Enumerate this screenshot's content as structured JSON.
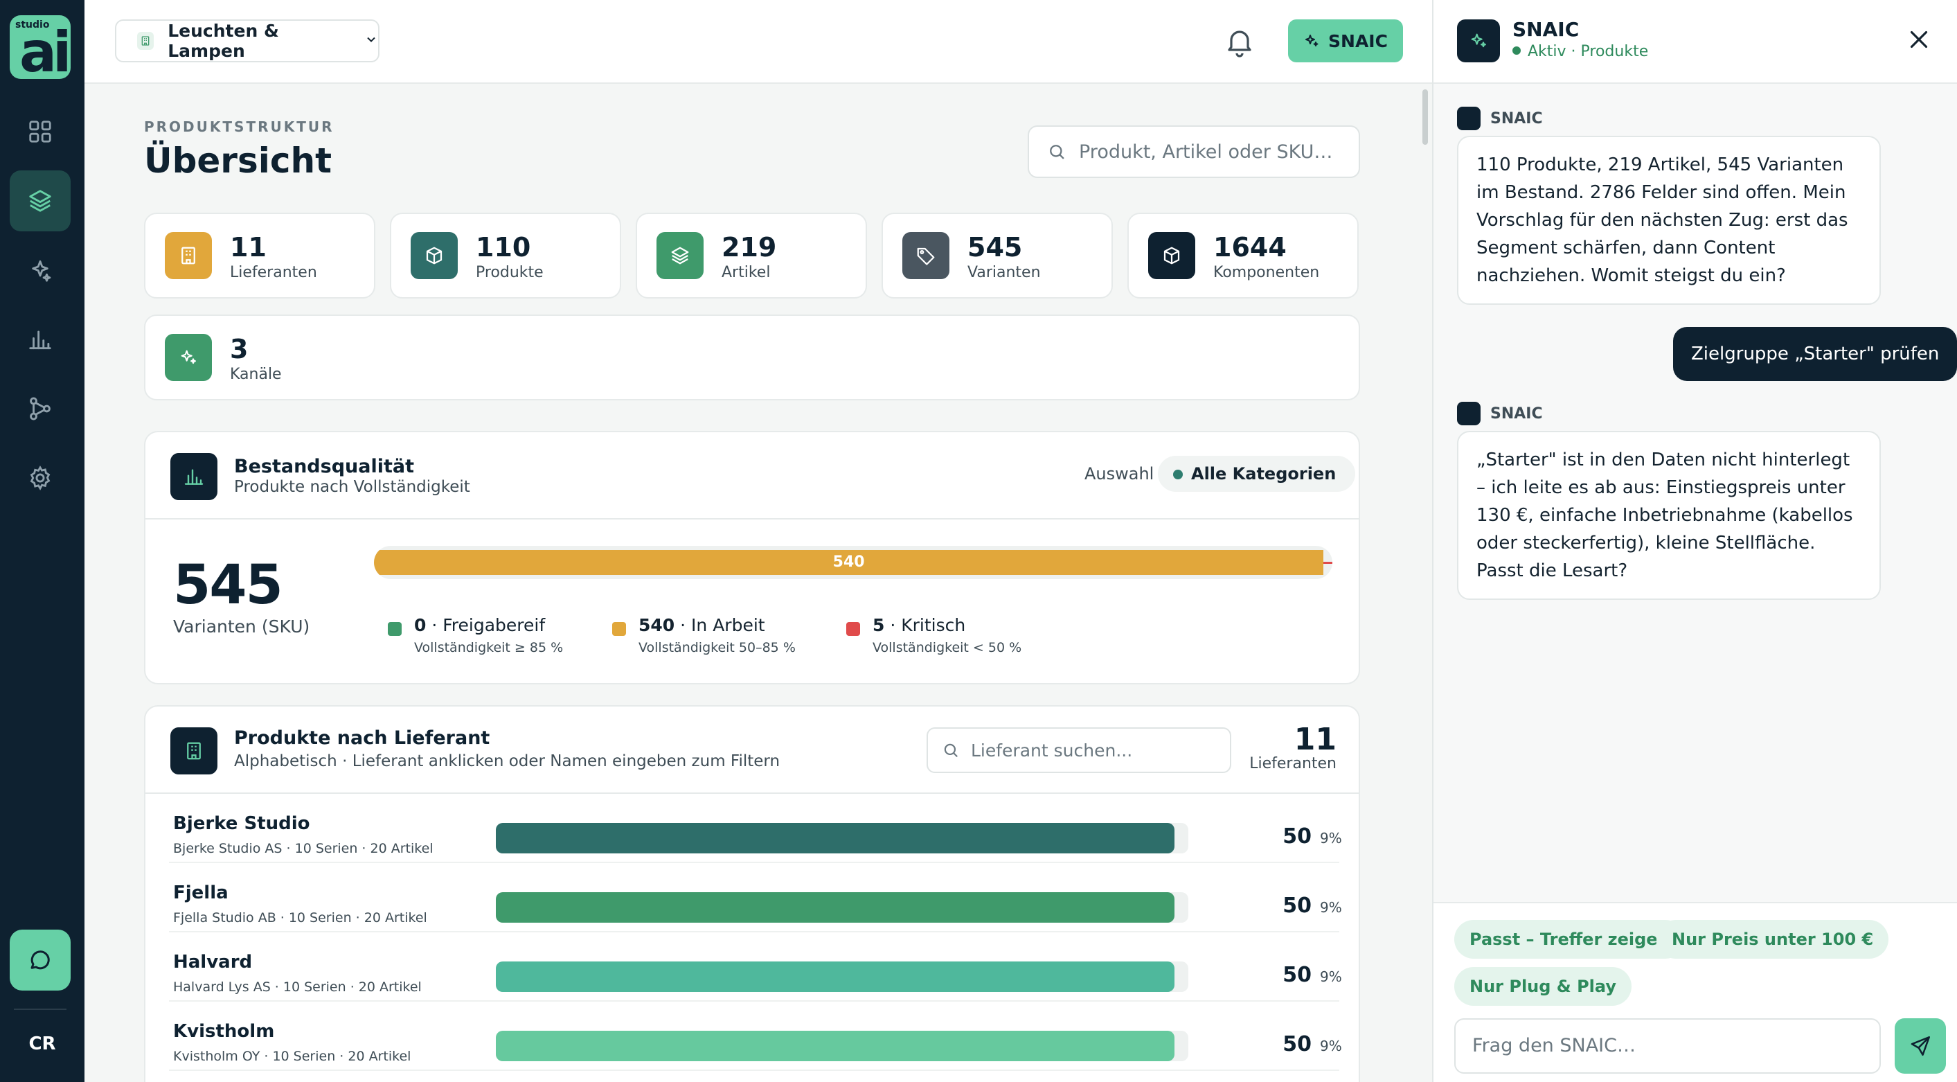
{
  "app": {
    "logo_small": "studio",
    "logo_big": "ai",
    "user_initials": "CR",
    "nav": [
      {
        "name": "dashboard",
        "icon": "grid-icon"
      },
      {
        "name": "products",
        "icon": "layers-icon"
      },
      {
        "name": "ai",
        "icon": "sparkles-icon"
      },
      {
        "name": "analytics",
        "icon": "bar-chart-icon"
      },
      {
        "name": "workflow",
        "icon": "git-branch-icon"
      },
      {
        "name": "settings",
        "icon": "gear-icon"
      }
    ]
  },
  "topbar": {
    "category": "Leuchten & Lampen",
    "snaic_label": "SNAIC"
  },
  "main": {
    "eyebrow": "PRODUKTSTRUKTUR",
    "title": "Übersicht",
    "search_placeholder": "Produkt, Artikel oder SKU…",
    "stats": [
      {
        "value": "11",
        "label": "Lieferanten",
        "icon": "building-icon",
        "color": "#e1a73b"
      },
      {
        "value": "110",
        "label": "Produkte",
        "icon": "box-icon",
        "color": "#2e6e6a"
      },
      {
        "value": "219",
        "label": "Artikel",
        "icon": "layers-icon",
        "color": "#3f9a6b"
      },
      {
        "value": "545",
        "label": "Varianten",
        "icon": "tag-icon",
        "color": "#4a5660"
      },
      {
        "value": "1644",
        "label": "Komponenten",
        "icon": "box-icon",
        "color": "#0e2130"
      }
    ],
    "channels": {
      "value": "3",
      "label": "Kanäle",
      "icon": "sparkles-icon",
      "color": "#3f9a6b"
    }
  },
  "quality": {
    "title": "Bestandsqualität",
    "subtitle": "Produkte nach Vollständigkeit",
    "selection_label": "Auswahl",
    "selection_value": "Alle Kategorien",
    "total": "545",
    "total_label": "Varianten (SKU)",
    "bar_label": "540",
    "total_count": 545,
    "segments": [
      {
        "count": "0",
        "label": "Freigabereif",
        "sub": "Vollständigkeit ≥ 85 %",
        "color": "#3f9a6b"
      },
      {
        "count": "540",
        "label": "In Arbeit",
        "sub": "Vollständigkeit 50–85 %",
        "color": "#e1a73b"
      },
      {
        "count": "5",
        "label": "Kritisch",
        "sub": "Vollständigkeit < 50 %",
        "color": "#e04b4b"
      }
    ]
  },
  "suppliers": {
    "title": "Produkte nach Lieferant",
    "subtitle": "Alphabetisch · Lieferant anklicken oder Namen eingeben zum Filtern",
    "search_placeholder": "Lieferant suchen...",
    "count": "11",
    "count_label": "Lieferanten",
    "rows": [
      {
        "name": "Bjerke Studio",
        "meta": "Bjerke Studio AS · 10 Serien · 20 Artikel",
        "count": "50",
        "pct": "9%",
        "share": 0.98,
        "color": "#2e6e6a"
      },
      {
        "name": "Fjella",
        "meta": "Fjella Studio AB · 10 Serien · 20 Artikel",
        "count": "50",
        "pct": "9%",
        "share": 0.98,
        "color": "#3f9a6b"
      },
      {
        "name": "Halvard",
        "meta": "Halvard Lys AS · 10 Serien · 20 Artikel",
        "count": "50",
        "pct": "9%",
        "share": 0.98,
        "color": "#4fb89c"
      },
      {
        "name": "Kvistholm",
        "meta": "Kvistholm OY · 10 Serien · 20 Artikel",
        "count": "50",
        "pct": "9%",
        "share": 0.98,
        "color": "#66c99e"
      }
    ]
  },
  "assistant": {
    "title": "SNAIC",
    "status": "Aktiv · Produkte",
    "author": "SNAIC",
    "messages": [
      {
        "from": "bot",
        "text": "110 Produkte, 219 Artikel, 545 Varianten im Bestand. 2786 Felder sind offen. Mein Vorschlag für den nächsten Zug: erst das Segment schärfen, dann Content nachziehen. Womit steigst du ein?"
      },
      {
        "from": "user",
        "text": "Zielgruppe „Starter\" prüfen"
      },
      {
        "from": "bot",
        "text": "„Starter\" ist in den Daten nicht hinterlegt – ich leite es ab aus: Einstiegspreis unter 130 €, einfache Inbetriebnahme (kabellos oder steckerfertig), kleine Stellfläche. Passt die Lesart?"
      }
    ],
    "chips": [
      "Passt – Treffer zeigen",
      "Nur Preis unter 100 €",
      "Nur Plug & Play"
    ],
    "input_placeholder": "Frag den SNAIC…"
  }
}
